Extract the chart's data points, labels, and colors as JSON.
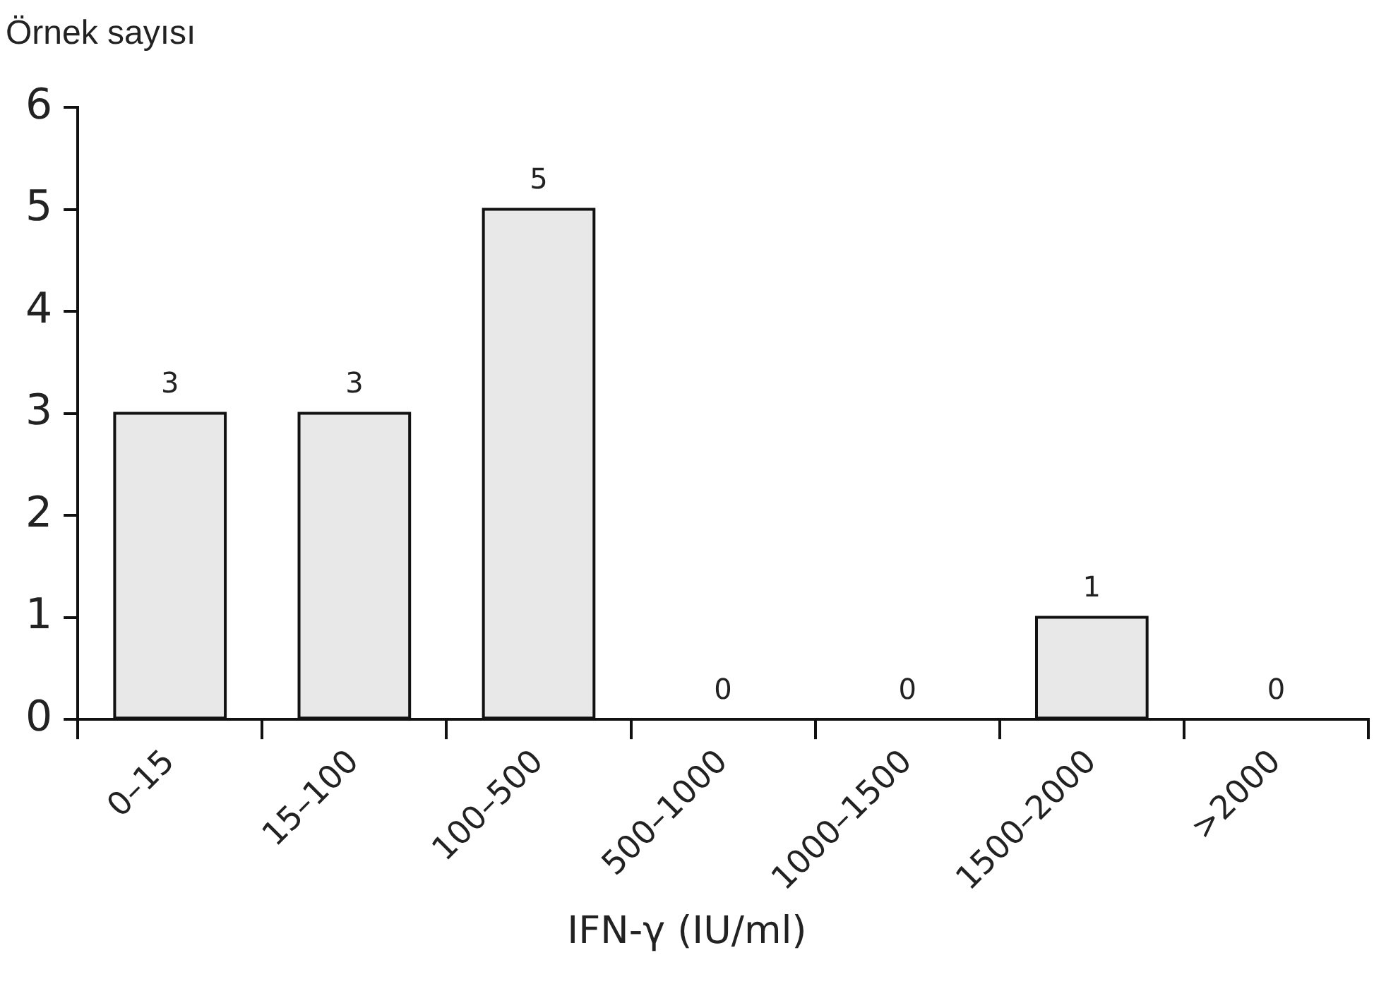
{
  "chart_data": {
    "type": "bar",
    "ylabel": "Örnek sayısı",
    "xlabel": "IFN-γ (IU/ml)",
    "categories": [
      "0–15",
      "15–100",
      "100–500",
      "500–1000",
      "1000–1500",
      "1500–2000",
      ">2000"
    ],
    "values": [
      3,
      3,
      5,
      0,
      0,
      1,
      0
    ],
    "color": "#e8e8e8",
    "ylim": [
      0,
      6
    ],
    "yticks": [
      0,
      1,
      2,
      3,
      4,
      5,
      6
    ],
    "grid": false,
    "legend": false,
    "data_labels": true
  }
}
